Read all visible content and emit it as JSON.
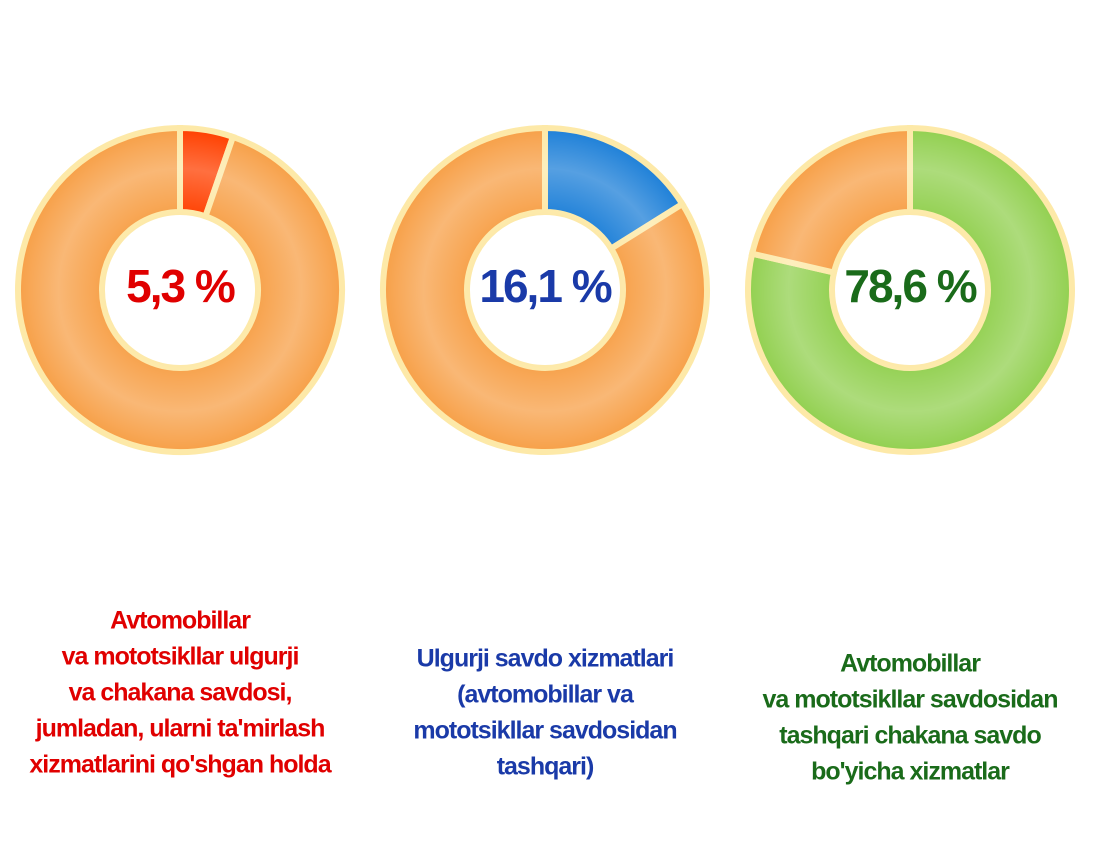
{
  "chart_data": [
    {
      "type": "pie",
      "donut": true,
      "categories": [
        "Avtomobillar va mototsikllar ulgurji va chakana savdosi, jumladan, ularni ta'mirlash xizmatlarini qo'shgan holda",
        null
      ],
      "label_lines": [
        "Avtomobillar",
        "va mototsikllar  ulgurji",
        "va chakana savdosi,",
        "jumladan, ularni ta'mirlash",
        "xizmatlarini qo'shgan holda"
      ],
      "values": [
        5.3,
        94.7
      ],
      "value_labels": [
        "5,3 %",
        null
      ],
      "colors": [
        "#ff4000",
        "#f7a048"
      ],
      "text_color": "#e00000"
    },
    {
      "type": "pie",
      "donut": true,
      "categories": [
        "Ulgurji savdo xizmatlari (avtomobillar va mototsikllar savdosidan tashqari)",
        null
      ],
      "label_lines": [
        "Ulgurji savdo xizmatlari",
        "(avtomobillar va",
        "mototsikllar savdosidan",
        "tashqari)"
      ],
      "values": [
        16.1,
        83.9
      ],
      "value_labels": [
        "16,1 %",
        null
      ],
      "colors": [
        "#1e80d8",
        "#f7a048"
      ],
      "text_color": "#1a3aa8"
    },
    {
      "type": "pie",
      "donut": true,
      "categories": [
        "Avtomobillar va mototsikllar savdosidan tashqari chakana savdo bo'yicha xizmatlar",
        null
      ],
      "label_lines": [
        "Avtomobillar",
        "va mototsikllar savdosidan",
        "tashqari chakana savdo",
        "bo'yicha xizmatlar"
      ],
      "values": [
        78.6,
        21.4
      ],
      "value_labels": [
        "78,6 %",
        null
      ],
      "colors": [
        "#92d050",
        "#f7a048"
      ],
      "text_color": "#1a6b1a"
    }
  ]
}
